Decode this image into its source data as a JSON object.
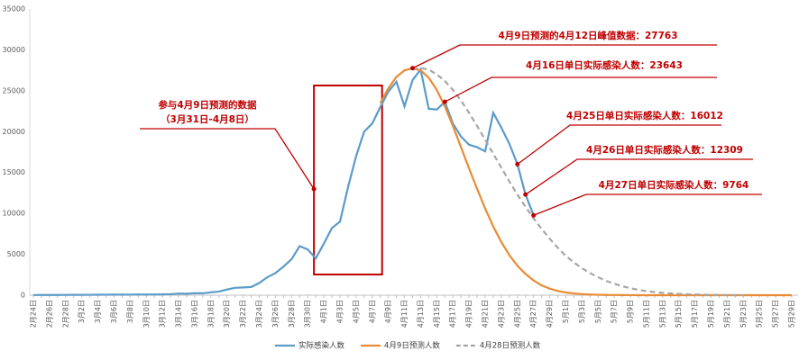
{
  "chart_data": {
    "type": "line",
    "categories": [
      "2月24日",
      null,
      "2月26日",
      null,
      "2月28日",
      null,
      "3月2日",
      null,
      "3月4日",
      null,
      "3月6日",
      null,
      "3月8日",
      null,
      "3月10日",
      null,
      "3月12日",
      null,
      "3月14日",
      null,
      "3月16日",
      null,
      "3月18日",
      null,
      "3月20日",
      null,
      "3月22日",
      null,
      "3月24日",
      null,
      "3月26日",
      null,
      "3月28日",
      null,
      "3月30日",
      null,
      "4月1日",
      null,
      "4月3日",
      null,
      "4月5日",
      null,
      "4月7日",
      null,
      "4月9日",
      null,
      "4月11日",
      null,
      "4月13日",
      null,
      "4月15日",
      null,
      "4月17日",
      null,
      "4月19日",
      null,
      "4月21日",
      null,
      "4月23日",
      null,
      "4月25日",
      null,
      "4月27日",
      null,
      "4月29日",
      null,
      "5月1日",
      null,
      "5月3日",
      null,
      "5月5日",
      null,
      "5月7日",
      null,
      "5月9日",
      null,
      "5月11日",
      null,
      "5月13日",
      null,
      "5月15日",
      null,
      "5月17日",
      null,
      "5月19日",
      null,
      "5月21日",
      null,
      "5月23日",
      null,
      "5月25日",
      null,
      "5月27日",
      null,
      "5月29日"
    ],
    "series": [
      {
        "name": "实际感染人数",
        "color": "#5b9bc8",
        "dashed": false,
        "values": [
          20,
          25,
          30,
          30,
          35,
          40,
          45,
          50,
          55,
          60,
          65,
          70,
          75,
          80,
          80,
          90,
          100,
          130,
          200,
          180,
          250,
          230,
          350,
          450,
          700,
          900,
          950,
          1000,
          1500,
          2200,
          2700,
          3500,
          4400,
          6000,
          5600,
          4500,
          6300,
          8200,
          9000,
          13200,
          17000,
          20000,
          21000,
          23000,
          24900,
          26100,
          23100,
          26300,
          27600,
          22800,
          22700,
          23643,
          21000,
          19400,
          18400,
          18100,
          17600,
          22300,
          20500,
          18500,
          16012,
          12309,
          9764,
          null,
          null,
          null,
          null,
          null,
          null,
          null,
          null,
          null,
          null,
          null,
          null,
          null,
          null,
          null,
          null,
          null,
          null,
          null,
          null,
          null,
          null,
          null,
          null,
          null,
          null,
          null,
          null,
          null,
          null,
          null,
          null
        ]
      },
      {
        "name": "4月9日预测人数",
        "color": "#e98b35",
        "dashed": false,
        "values": [
          null,
          null,
          null,
          null,
          null,
          null,
          null,
          null,
          null,
          null,
          null,
          null,
          null,
          null,
          null,
          null,
          null,
          null,
          null,
          null,
          null,
          null,
          null,
          null,
          null,
          null,
          null,
          null,
          null,
          null,
          null,
          null,
          null,
          null,
          null,
          null,
          null,
          null,
          null,
          null,
          null,
          null,
          null,
          23500,
          25300,
          26700,
          27500,
          27763,
          27500,
          26600,
          25100,
          23100,
          20700,
          18100,
          15500,
          13000,
          10600,
          8400,
          6500,
          4900,
          3600,
          2600,
          1800,
          1200,
          800,
          520,
          330,
          210,
          130,
          80,
          50,
          30,
          20,
          10,
          5,
          0,
          0,
          0,
          0,
          0,
          0,
          0,
          0,
          0,
          0,
          0,
          0,
          0,
          0,
          0,
          0,
          0,
          0,
          0,
          0
        ]
      },
      {
        "name": "4月28日预测人数",
        "color": "#a6a6a6",
        "dashed": true,
        "values": [
          null,
          null,
          null,
          null,
          null,
          null,
          null,
          null,
          null,
          null,
          null,
          null,
          null,
          null,
          null,
          null,
          null,
          null,
          null,
          null,
          null,
          null,
          null,
          null,
          null,
          null,
          null,
          null,
          null,
          null,
          null,
          null,
          null,
          null,
          null,
          null,
          null,
          null,
          null,
          null,
          null,
          null,
          null,
          null,
          null,
          null,
          null,
          27600,
          27800,
          27600,
          27000,
          26200,
          25100,
          23800,
          22300,
          20700,
          19000,
          17300,
          15600,
          13900,
          12300,
          10800,
          9400,
          8100,
          6900,
          5800,
          4800,
          4000,
          3300,
          2700,
          2200,
          1750,
          1400,
          1100,
          850,
          650,
          500,
          380,
          290,
          220,
          160,
          120,
          90,
          60,
          40,
          25,
          15,
          10,
          5,
          null,
          null,
          null,
          null,
          null,
          null
        ]
      }
    ],
    "ylim": [
      0,
      35000
    ],
    "yticks": [
      0,
      5000,
      10000,
      15000,
      20000,
      25000,
      30000,
      35000
    ],
    "grid": false,
    "annotations": [
      {
        "lines": [
          "参与4月9日预测的数据",
          "（3月31日-4月8日）"
        ]
      },
      {
        "text": "4月9日预测的4月12日峰值数据：27763"
      },
      {
        "text": "4月16日单日实际感染人数：23643"
      },
      {
        "text": "4月25日单日实际感染人数：16012"
      },
      {
        "text": "4月26日单日实际感染人数：12309"
      },
      {
        "text": "4月27日单日实际感染人数：9764"
      }
    ]
  }
}
